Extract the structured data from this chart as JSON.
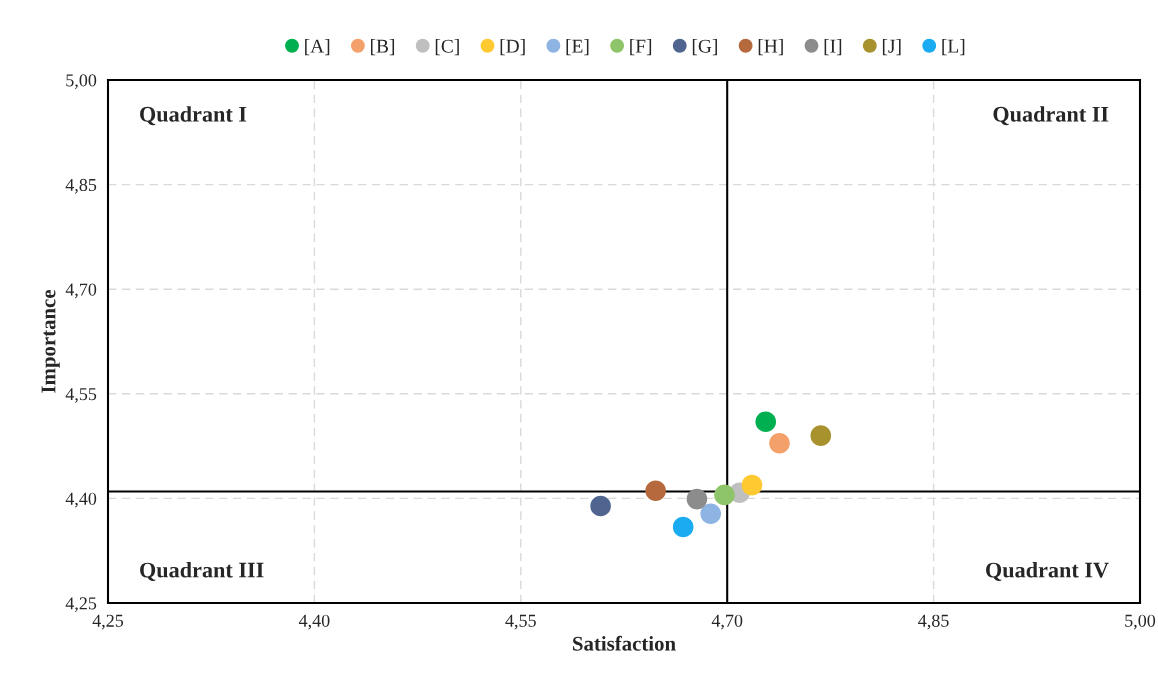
{
  "chart_data": {
    "type": "scatter",
    "xlabel": "Satisfaction",
    "ylabel": "Importance",
    "series": [
      {
        "name": "[A]",
        "color": "#00b050",
        "x": [
          4.728
        ],
        "values": [
          4.51
        ]
      },
      {
        "name": "[B]",
        "color": "#f4a06a",
        "x": [
          4.738
        ],
        "values": [
          4.479
        ]
      },
      {
        "name": "[C]",
        "color": "#bfbfbf",
        "x": [
          4.709
        ],
        "values": [
          4.408
        ]
      },
      {
        "name": "[D]",
        "color": "#ffc931",
        "x": [
          4.718
        ],
        "values": [
          4.419
        ]
      },
      {
        "name": "[E]",
        "color": "#8db4e2",
        "x": [
          4.688
        ],
        "values": [
          4.378
        ]
      },
      {
        "name": "[F]",
        "color": "#8fc56a",
        "x": [
          4.698
        ],
        "values": [
          4.405
        ]
      },
      {
        "name": "[G]",
        "color": "#4f6590",
        "x": [
          4.608
        ],
        "values": [
          4.389
        ]
      },
      {
        "name": "[H]",
        "color": "#b5693c",
        "x": [
          4.648
        ],
        "values": [
          4.411
        ]
      },
      {
        "name": "[I]",
        "color": "#8c8c8c",
        "x": [
          4.678
        ],
        "values": [
          4.399
        ]
      },
      {
        "name": "[J]",
        "color": "#a8922e",
        "x": [
          4.768
        ],
        "values": [
          4.49
        ]
      },
      {
        "name": "[L]",
        "color": "#1aabf0",
        "x": [
          4.668
        ],
        "values": [
          4.359
        ]
      }
    ],
    "xlim": [
      4.25,
      5.0
    ],
    "ylim": [
      4.25,
      5.0
    ],
    "xticks": [
      {
        "value": 4.25,
        "label": "4,25"
      },
      {
        "value": 4.4,
        "label": "4,40"
      },
      {
        "value": 4.55,
        "label": "4,55"
      },
      {
        "value": 4.7,
        "label": "4,70"
      },
      {
        "value": 4.85,
        "label": "4,85"
      },
      {
        "value": 5.0,
        "label": "5,00"
      }
    ],
    "yticks": [
      {
        "value": 4.25,
        "label": "4,25"
      },
      {
        "value": 4.4,
        "label": "4,40"
      },
      {
        "value": 4.55,
        "label": "4,55"
      },
      {
        "value": 4.7,
        "label": "4,70"
      },
      {
        "value": 4.85,
        "label": "4,85"
      },
      {
        "value": 5.0,
        "label": "5,00"
      }
    ],
    "ref_lines": [
      {
        "axis": "x",
        "value": 4.7,
        "color": "#000000"
      },
      {
        "axis": "y",
        "value": 4.41,
        "color": "#000000"
      }
    ],
    "annotations": [
      "Quadrant I",
      "Quadrant II",
      "Quadrant III",
      "Quadrant IV"
    ],
    "grid": true,
    "legend": "top",
    "marker": "circle"
  }
}
